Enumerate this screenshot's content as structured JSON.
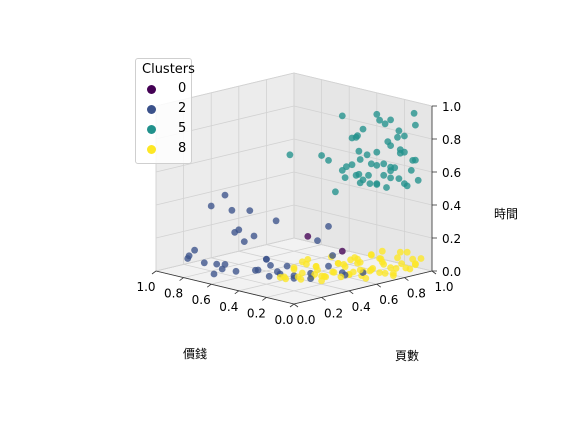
{
  "chart_data": {
    "type": "scatter",
    "title": "",
    "legend": {
      "title": "Clusters",
      "placement": "top-left",
      "entries": [
        {
          "label": "0",
          "color": "#440154"
        },
        {
          "label": "2",
          "color": "#3b528b"
        },
        {
          "label": "5",
          "color": "#21918c"
        },
        {
          "label": "8",
          "color": "#fde725"
        }
      ]
    },
    "axes": {
      "x": {
        "label": "價錢",
        "ticks": [
          "0.0",
          "0.2",
          "0.4",
          "0.6",
          "0.8",
          "1.0"
        ],
        "range": [
          0,
          1
        ]
      },
      "y": {
        "label": "頁數",
        "ticks": [
          "0.0",
          "0.2",
          "0.4",
          "0.6",
          "0.8",
          "1.0"
        ],
        "range": [
          0,
          1
        ]
      },
      "z": {
        "label": "時間",
        "ticks": [
          "0.0",
          "0.2",
          "0.4",
          "0.6",
          "0.8",
          "1.0"
        ],
        "range": [
          0,
          1
        ]
      }
    },
    "grid": true,
    "series": [
      {
        "name": "0",
        "color": "#440154",
        "points": [
          [
            0.35,
            0.45,
            0.25
          ],
          [
            0.25,
            0.6,
            0.15
          ]
        ]
      },
      {
        "name": "2",
        "color": "#3b528b",
        "points": [
          [
            0.45,
            0.05,
            0.35
          ],
          [
            0.52,
            0.07,
            0.45
          ],
          [
            0.7,
            0.05,
            0.1
          ],
          [
            0.66,
            0.06,
            0.45
          ],
          [
            0.86,
            0.1,
            0.1
          ],
          [
            0.8,
            0.08,
            0.15
          ],
          [
            0.6,
            0.1,
            0.1
          ],
          [
            0.55,
            0.12,
            0.3
          ],
          [
            0.5,
            0.14,
            0.25
          ],
          [
            0.58,
            0.16,
            0.05
          ],
          [
            0.76,
            0.2,
            0.05
          ],
          [
            0.4,
            0.2,
            0.15
          ],
          [
            0.33,
            0.13,
            0.18
          ],
          [
            0.95,
            0.18,
            0.05
          ],
          [
            0.74,
            0.22,
            0.02
          ],
          [
            0.42,
            0.25,
            0.1
          ],
          [
            0.52,
            0.26,
            0.05
          ],
          [
            0.46,
            0.28,
            0.02
          ],
          [
            0.38,
            0.28,
            0.05
          ],
          [
            0.3,
            0.25,
            0.12
          ],
          [
            0.6,
            0.32,
            0.02
          ],
          [
            0.9,
            0.4,
            0.4
          ],
          [
            0.55,
            0.26,
            0.25
          ],
          [
            0.2,
            0.32,
            0.05
          ],
          [
            0.62,
            0.04,
            0.05
          ],
          [
            0.34,
            0.34,
            0.02
          ],
          [
            0.5,
            0.38,
            0.02
          ],
          [
            0.28,
            0.4,
            0.05
          ],
          [
            0.2,
            0.45,
            0.1
          ],
          [
            0.22,
            0.5,
            0.15
          ],
          [
            0.7,
            0.38,
            0.35
          ],
          [
            0.25,
            0.42,
            0.25
          ],
          [
            0.18,
            0.55,
            0.03
          ],
          [
            0.15,
            0.5,
            0.06
          ],
          [
            0.38,
            0.38,
            0.02
          ],
          [
            0.45,
            0.32,
            0.35
          ],
          [
            0.3,
            0.55,
            0.3
          ],
          [
            0.1,
            0.6,
            0.05
          ]
        ]
      },
      {
        "name": "5",
        "color": "#21918c",
        "points": [
          [
            0.2,
            0.8,
            0.95
          ],
          [
            0.55,
            0.8,
            0.6
          ],
          [
            0.65,
            0.62,
            0.65
          ],
          [
            0.05,
            0.95,
            0.55
          ],
          [
            0.3,
            0.65,
            0.95
          ],
          [
            0.22,
            0.7,
            0.55
          ],
          [
            0.4,
            0.6,
            0.7
          ],
          [
            0.1,
            0.95,
            0.6
          ],
          [
            0.3,
            0.6,
            0.5
          ],
          [
            0.15,
            0.65,
            0.9
          ],
          [
            0.12,
            0.8,
            0.8
          ],
          [
            0.25,
            0.9,
            0.55
          ],
          [
            0.08,
            0.9,
            0.52
          ],
          [
            0.18,
            0.85,
            0.5
          ],
          [
            0.3,
            0.85,
            0.5
          ],
          [
            0.22,
            0.78,
            0.65
          ],
          [
            0.15,
            0.92,
            0.7
          ],
          [
            0.05,
            0.75,
            0.8
          ],
          [
            0.25,
            0.7,
            0.82
          ],
          [
            0.1,
            0.8,
            0.65
          ],
          [
            0.18,
            0.65,
            0.62
          ],
          [
            0.28,
            0.75,
            0.72
          ],
          [
            0.08,
            0.85,
            0.75
          ],
          [
            0.12,
            0.88,
            0.85
          ],
          [
            0.02,
            0.9,
            0.9
          ],
          [
            0.35,
            0.8,
            0.55
          ],
          [
            0.2,
            0.95,
            0.78
          ],
          [
            0.05,
            0.7,
            0.7
          ],
          [
            0.15,
            0.75,
            0.55
          ],
          [
            0.25,
            0.85,
            0.62
          ],
          [
            0.02,
            0.78,
            0.6
          ],
          [
            0.12,
            0.65,
            0.75
          ],
          [
            0.3,
            0.9,
            0.68
          ],
          [
            0.18,
            0.6,
            0.85
          ],
          [
            0.08,
            0.95,
            0.95
          ],
          [
            0.35,
            0.7,
            0.6
          ],
          [
            0.22,
            0.92,
            0.58
          ],
          [
            0.1,
            0.72,
            0.95
          ],
          [
            0.28,
            0.65,
            0.58
          ],
          [
            0.05,
            0.85,
            0.55
          ],
          [
            0.15,
            0.88,
            0.62
          ],
          [
            0.2,
            0.68,
            0.7
          ],
          [
            0.32,
            0.78,
            0.8
          ],
          [
            0.02,
            0.82,
            0.85
          ],
          [
            0.12,
            0.98,
            0.65
          ],
          [
            0.26,
            0.96,
            0.52
          ],
          [
            0.06,
            0.66,
            0.58
          ],
          [
            0.18,
            0.72,
            0.6
          ],
          [
            0.38,
            0.88,
            0.5
          ],
          [
            0.1,
            0.9,
            0.72
          ],
          [
            0.24,
            0.62,
            0.66
          ],
          [
            0.14,
            0.84,
            0.92
          ],
          [
            0.04,
            0.92,
            0.68
          ],
          [
            0.3,
            0.72,
            0.64
          ],
          [
            0.2,
            0.86,
            0.88
          ]
        ]
      },
      {
        "name": "8",
        "color": "#fde725",
        "points": [
          [
            0.32,
            0.25,
            0.05
          ],
          [
            0.36,
            0.3,
            0.02
          ],
          [
            0.27,
            0.3,
            0.05
          ],
          [
            0.3,
            0.35,
            0.02
          ],
          [
            0.24,
            0.4,
            0.1
          ],
          [
            0.34,
            0.4,
            0.04
          ],
          [
            0.28,
            0.45,
            0.06
          ],
          [
            0.2,
            0.4,
            0.02
          ],
          [
            0.22,
            0.5,
            0.05
          ],
          [
            0.3,
            0.5,
            0.01
          ],
          [
            0.18,
            0.55,
            0.08
          ],
          [
            0.26,
            0.55,
            0.03
          ],
          [
            0.14,
            0.6,
            0.1
          ],
          [
            0.2,
            0.6,
            0.02
          ],
          [
            0.28,
            0.6,
            0.07
          ],
          [
            0.1,
            0.65,
            0.05
          ],
          [
            0.16,
            0.65,
            0.01
          ],
          [
            0.24,
            0.65,
            0.09
          ],
          [
            0.08,
            0.7,
            0.12
          ],
          [
            0.14,
            0.7,
            0.04
          ],
          [
            0.2,
            0.7,
            0.02
          ],
          [
            0.05,
            0.75,
            0.06
          ],
          [
            0.12,
            0.75,
            0.1
          ],
          [
            0.18,
            0.75,
            0.03
          ],
          [
            0.02,
            0.8,
            0.08
          ],
          [
            0.08,
            0.8,
            0.01
          ],
          [
            0.15,
            0.8,
            0.05
          ],
          [
            0.04,
            0.85,
            0.04
          ],
          [
            0.1,
            0.85,
            0.09
          ],
          [
            0.02,
            0.9,
            0.06
          ],
          [
            0.06,
            0.9,
            0.02
          ],
          [
            0.03,
            0.95,
            0.08
          ],
          [
            0.35,
            0.35,
            0.08
          ],
          [
            0.32,
            0.45,
            0.01
          ],
          [
            0.26,
            0.35,
            0.12
          ],
          [
            0.22,
            0.45,
            0.03
          ],
          [
            0.18,
            0.5,
            0.11
          ],
          [
            0.12,
            0.55,
            0.06
          ],
          [
            0.16,
            0.6,
            0.13
          ],
          [
            0.08,
            0.6,
            0.02
          ],
          [
            0.22,
            0.58,
            0.08
          ],
          [
            0.12,
            0.68,
            0.14
          ],
          [
            0.06,
            0.72,
            0.03
          ],
          [
            0.18,
            0.82,
            0.12
          ],
          [
            0.05,
            0.82,
            0.14
          ],
          [
            0.1,
            0.92,
            0.11
          ],
          [
            0.24,
            0.72,
            0.06
          ],
          [
            0.3,
            0.4,
            0.13
          ],
          [
            0.38,
            0.28,
            0.03
          ],
          [
            0.2,
            0.35,
            0.07
          ],
          [
            0.26,
            0.48,
            0.02
          ],
          [
            0.14,
            0.48,
            0.04
          ],
          [
            0.28,
            0.55,
            0.12
          ],
          [
            0.1,
            0.58,
            0.07
          ],
          [
            0.2,
            0.66,
            0.1
          ],
          [
            0.04,
            0.66,
            0.05
          ],
          [
            0.14,
            0.78,
            0.07
          ],
          [
            0.0,
            0.86,
            0.1
          ],
          [
            0.08,
            0.96,
            0.03
          ],
          [
            0.34,
            0.5,
            0.06
          ],
          [
            0.22,
            0.62,
            0.01
          ],
          [
            0.16,
            0.72,
            0.12
          ],
          [
            0.02,
            0.74,
            0.02
          ],
          [
            0.12,
            0.86,
            0.02
          ],
          [
            0.36,
            0.42,
            0.1
          ],
          [
            0.3,
            0.3,
            0.09
          ]
        ]
      }
    ]
  }
}
